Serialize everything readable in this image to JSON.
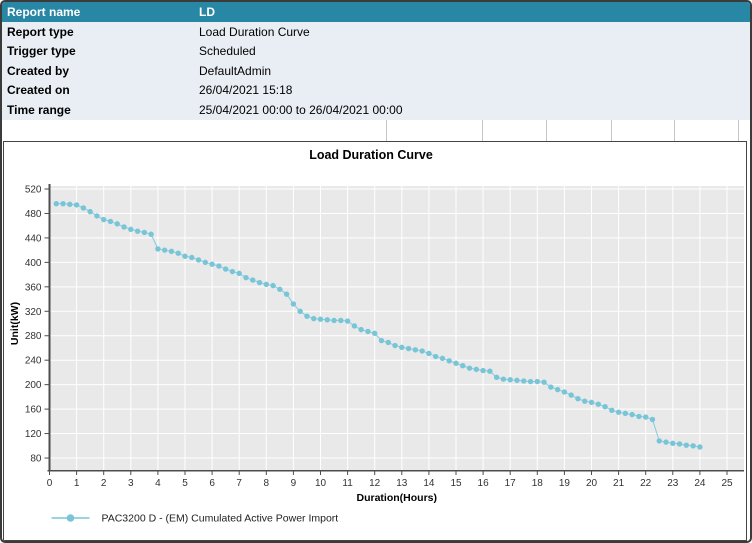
{
  "report_table": {
    "header": {
      "label": "Report name",
      "value": "LD"
    },
    "rows": [
      {
        "label": "Report type",
        "value": "Load Duration Curve"
      },
      {
        "label": "Trigger type",
        "value": "Scheduled"
      },
      {
        "label": "Created by",
        "value": "DefaultAdmin"
      },
      {
        "label": "Created on",
        "value": "26/04/2021 15:18"
      },
      {
        "label": "Time range",
        "value": "25/04/2021 00:00 to 26/04/2021 00:00"
      }
    ]
  },
  "colors": {
    "table_header_bg": "#2787A5",
    "table_row_bg": "#E9EEF4",
    "plot_background": "#E9E9E9",
    "grid_line": "#FFFFFF",
    "series_color": "#78C5D8",
    "axis_color": "#4d4d4d",
    "tick_text": "#333333"
  },
  "chart_data": {
    "type": "line",
    "title": "Load Duration Curve",
    "xlabel": "Duration(Hours)",
    "ylabel": "Unit(kW)",
    "xlim": [
      0,
      25.6
    ],
    "ylim": [
      60,
      525
    ],
    "x_ticks": [
      0,
      1,
      2,
      3,
      4,
      5,
      6,
      7,
      8,
      9,
      10,
      11,
      12,
      13,
      14,
      15,
      16,
      17,
      18,
      19,
      20,
      21,
      22,
      23,
      24,
      25
    ],
    "y_ticks": [
      80,
      120,
      160,
      200,
      240,
      280,
      320,
      360,
      400,
      440,
      480,
      520
    ],
    "grid": true,
    "legend_position": "bottom-left",
    "series": [
      {
        "name": "PAC3200 D - (EM) Cumulated Active Power Import",
        "color": "#78C5D8",
        "x": [
          0.25,
          0.5,
          0.75,
          1,
          1.25,
          1.5,
          1.75,
          2,
          2.25,
          2.5,
          2.75,
          3,
          3.25,
          3.5,
          3.75,
          4,
          4.25,
          4.5,
          4.75,
          5,
          5.25,
          5.5,
          5.75,
          6,
          6.25,
          6.5,
          6.75,
          7,
          7.25,
          7.5,
          7.75,
          8,
          8.25,
          8.5,
          8.75,
          9,
          9.25,
          9.5,
          9.75,
          10,
          10.25,
          10.5,
          10.75,
          11,
          11.25,
          11.5,
          11.75,
          12,
          12.25,
          12.5,
          12.75,
          13,
          13.25,
          13.5,
          13.75,
          14,
          14.25,
          14.5,
          14.75,
          15,
          15.25,
          15.5,
          15.75,
          16,
          16.25,
          16.5,
          16.75,
          17,
          17.25,
          17.5,
          17.75,
          18,
          18.25,
          18.5,
          18.75,
          19,
          19.25,
          19.5,
          19.75,
          20,
          20.25,
          20.5,
          20.75,
          21,
          21.25,
          21.5,
          21.75,
          22,
          22.25,
          22.5,
          22.75,
          23,
          23.25,
          23.5,
          23.75,
          24
        ],
        "y": [
          496,
          496,
          495,
          494,
          489,
          483,
          476,
          470,
          467,
          463,
          458,
          454,
          451,
          449,
          446,
          422,
          420,
          418,
          415,
          410,
          408,
          404,
          400,
          397,
          394,
          389,
          385,
          382,
          375,
          371,
          367,
          364,
          362,
          356,
          348,
          332,
          320,
          312,
          308,
          307,
          306,
          305,
          305,
          304,
          296,
          290,
          287,
          284,
          272,
          269,
          264,
          261,
          259,
          257,
          255,
          251,
          246,
          243,
          239,
          235,
          231,
          227,
          225,
          223,
          222,
          212,
          209,
          208,
          207,
          206,
          205,
          205,
          204,
          196,
          192,
          188,
          183,
          177,
          173,
          171,
          168,
          164,
          158,
          155,
          153,
          151,
          148,
          147,
          143,
          108,
          106,
          104,
          103,
          101,
          100,
          98
        ]
      }
    ]
  }
}
